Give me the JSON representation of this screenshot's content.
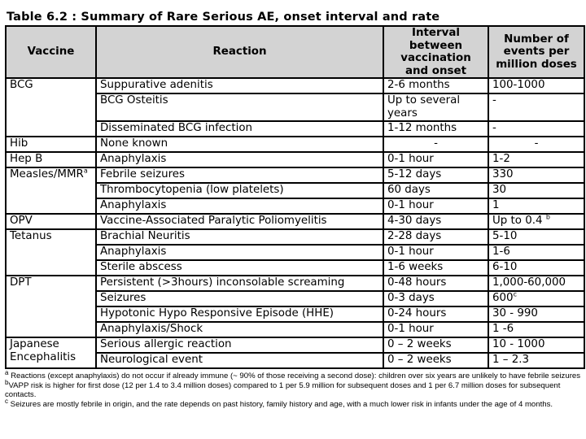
{
  "title": "Table 6.2 : Summary of Rare Serious AE, onset interval and rate",
  "columns": [
    "Vaccine",
    "Reaction",
    "Interval between vaccination and onset",
    "Number of events per million doses"
  ],
  "groups": [
    {
      "vaccine": "BCG",
      "vaccine_sup": "",
      "rows": [
        {
          "reaction": "Suppurative adenitis",
          "interval": "2-6 months",
          "rate": "100-1000",
          "rate_sup": ""
        },
        {
          "reaction": "BCG Osteitis",
          "interval": "Up to several years",
          "rate": "-",
          "rate_sup": ""
        },
        {
          "reaction": "Disseminated BCG infection",
          "interval": "1-12 months",
          "rate": "-",
          "rate_sup": ""
        }
      ]
    },
    {
      "vaccine": "Hib",
      "vaccine_sup": "",
      "rows": [
        {
          "reaction": "None known",
          "interval": "-",
          "rate": "-",
          "rate_sup": ""
        }
      ]
    },
    {
      "vaccine": "Hep B",
      "vaccine_sup": "",
      "rows": [
        {
          "reaction": "Anaphylaxis",
          "interval": "0-1 hour",
          "rate": "1-2",
          "rate_sup": ""
        }
      ]
    },
    {
      "vaccine": "Measles/MMR",
      "vaccine_sup": "a",
      "rows": [
        {
          "reaction": "Febrile seizures",
          "interval": "5-12 days",
          "rate": "330",
          "rate_sup": ""
        },
        {
          "reaction": "Thrombocytopenia (low platelets)",
          "interval": "60 days",
          "rate": "30",
          "rate_sup": ""
        },
        {
          "reaction": "Anaphylaxis",
          "interval": "0-1 hour",
          "rate": "1",
          "rate_sup": ""
        }
      ]
    },
    {
      "vaccine": "OPV",
      "vaccine_sup": "",
      "rows": [
        {
          "reaction": "Vaccine-Associated Paralytic Poliomyelitis",
          "interval": "4-30 days",
          "rate": "Up to 0.4",
          "rate_sup": "b"
        }
      ]
    },
    {
      "vaccine": "Tetanus",
      "vaccine_sup": "",
      "rows": [
        {
          "reaction": "Brachial Neuritis",
          "interval": "2-28 days",
          "rate": "5-10",
          "rate_sup": ""
        },
        {
          "reaction": "Anaphylaxis",
          "interval": "0-1 hour",
          "rate": "1-6",
          "rate_sup": ""
        },
        {
          "reaction": "Sterile abscess",
          "interval": "1-6 weeks",
          "rate": "6-10",
          "rate_sup": ""
        }
      ]
    },
    {
      "vaccine": "DPT",
      "vaccine_sup": "",
      "rows": [
        {
          "reaction": "Persistent (>3hours) inconsolable screaming",
          "interval": "0-48 hours",
          "rate": "1,000-60,000",
          "rate_sup": ""
        },
        {
          "reaction": "Seizures",
          "interval": "0-3 days",
          "rate": "600",
          "rate_sup": "c"
        },
        {
          "reaction": "Hypotonic Hypo Responsive Episode (HHE)",
          "interval": "0-24 hours",
          "rate": "30 - 990",
          "rate_sup": ""
        },
        {
          "reaction": "Anaphylaxis/Shock",
          "interval": "0-1 hour",
          "rate": "1 -6",
          "rate_sup": ""
        }
      ]
    },
    {
      "vaccine": "Japanese Encephalitis",
      "vaccine_sup": "",
      "rows": [
        {
          "reaction": "Serious allergic reaction",
          "interval": "0 – 2 weeks",
          "rate": "10 - 1000",
          "rate_sup": ""
        },
        {
          "reaction": "Neurological event",
          "interval": "0 – 2 weeks",
          "rate": "1 – 2.3",
          "rate_sup": ""
        }
      ]
    }
  ],
  "footnotes": [
    {
      "mark": "a",
      "text": " Reactions (except anaphylaxis) do not occur if already immune (~ 90% of those receiving a second dose): children over six years are unlikely to have febrile seizures"
    },
    {
      "mark": "b",
      "text": "VAPP risk is higher for first dose (12 per 1.4 to 3.4 million doses) compared to 1 per 5.9 million for subsequent doses and 1 per 6.7 million doses for subsequent contacts."
    },
    {
      "mark": "c",
      "text": " Seizures are mostly febrile in origin, and the rate depends on past history, family history and age, with a much lower risk in infants under the age of 4 months."
    }
  ]
}
